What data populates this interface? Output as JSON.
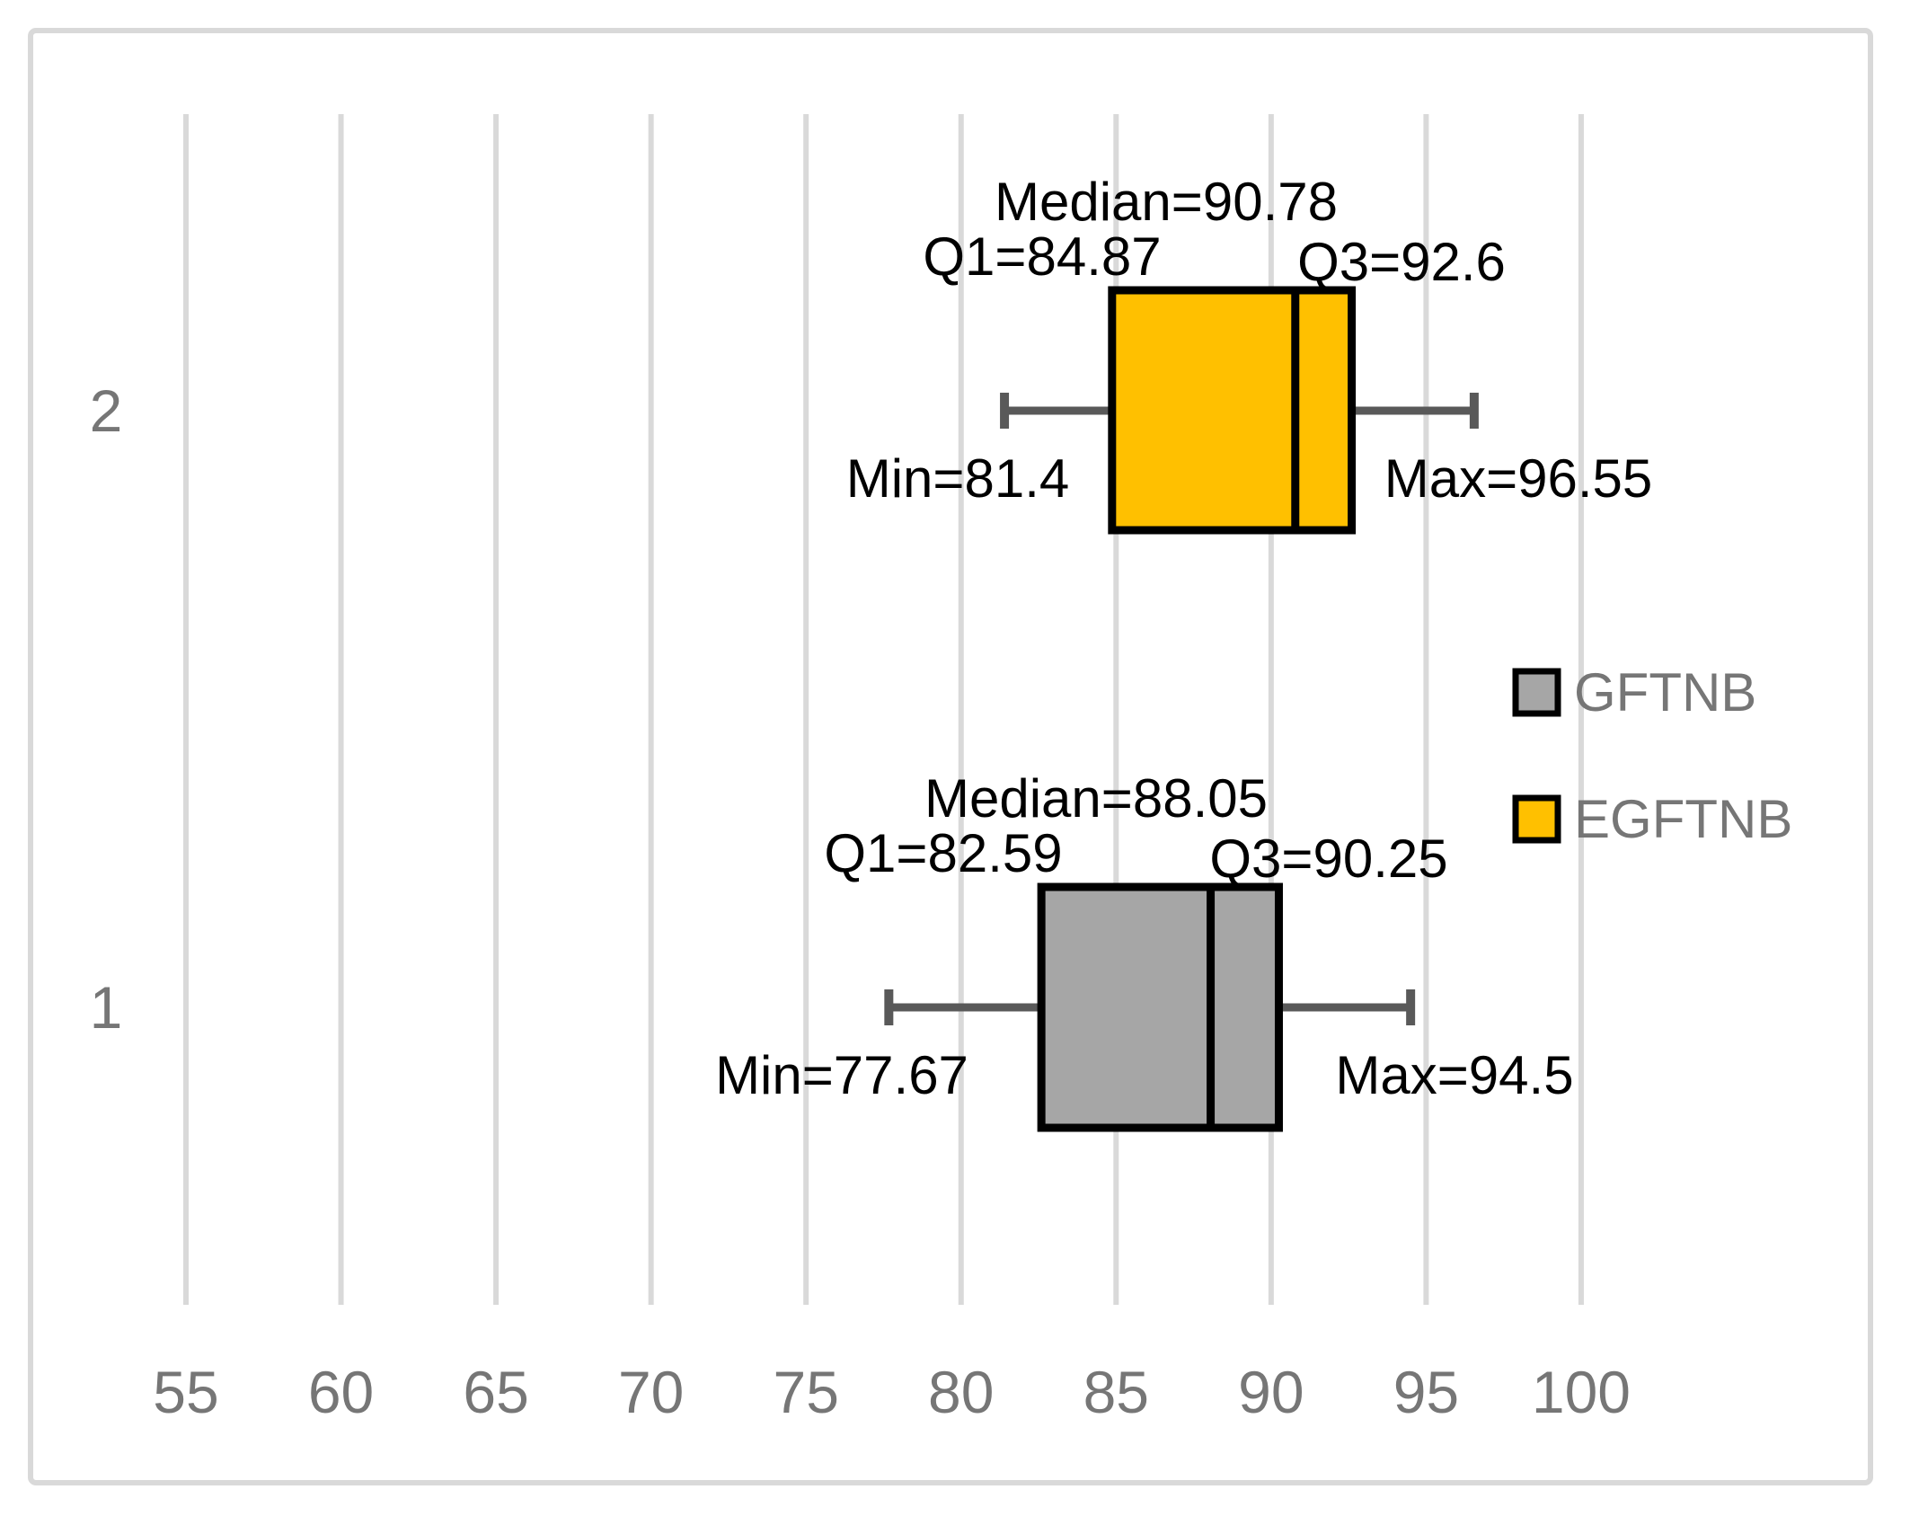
{
  "chart_data": {
    "type": "boxplot",
    "orientation": "horizontal",
    "title": "",
    "x_axis": {
      "ticks": [
        55,
        60,
        65,
        70,
        75,
        80,
        85,
        90,
        95,
        100
      ],
      "min": 55,
      "max": 100,
      "grid": true
    },
    "y_axis": {
      "categories": [
        "2",
        "1"
      ]
    },
    "series": [
      {
        "name": "EGFTNB",
        "category": "2",
        "fill_color": "#FFC000",
        "min": 81.4,
        "q1": 84.87,
        "median": 90.78,
        "q3": 92.6,
        "max": 96.55,
        "labels": {
          "median": "Median=90.78",
          "q1": "Q1=84.87",
          "q3": "Q3=92.6",
          "min": "Min=81.4",
          "max": "Max=96.55"
        }
      },
      {
        "name": "GFTNB",
        "category": "1",
        "fill_color": "#A6A6A6",
        "min": 77.67,
        "q1": 82.59,
        "median": 88.05,
        "q3": 90.25,
        "max": 94.5,
        "labels": {
          "median": "Median=88.05",
          "q1": "Q1=82.59",
          "q3": "Q3=90.25",
          "min": "Min=77.67",
          "max": "Max=94.5"
        }
      }
    ],
    "legend": {
      "position": "right",
      "entries": [
        {
          "label": "GFTNB",
          "color": "#A6A6A6"
        },
        {
          "label": "EGFTNB",
          "color": "#FFC000"
        }
      ]
    }
  },
  "colors": {
    "box_border": "#000000",
    "median_line": "#000000",
    "whisker": "#595959",
    "gridline": "#D9D9D9",
    "chart_border": "#D9D9D9",
    "axis_text": "#767676",
    "category_text": "#767676",
    "legend_text": "#767676",
    "data_label_text": "#000000",
    "background": "#FFFFFF"
  }
}
